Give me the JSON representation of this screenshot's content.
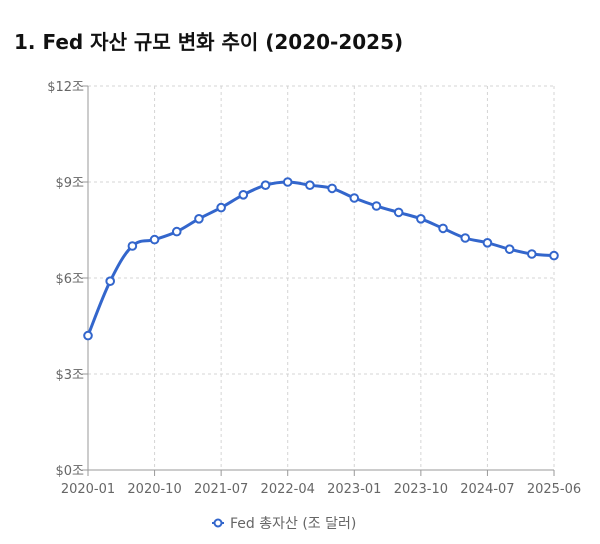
{
  "chart_data": {
    "type": "line",
    "title": "1. Fed 자산 규모 변화 추이 (2020-2025)",
    "xlabel": "",
    "ylabel": "",
    "x": [
      "2020-01",
      "2020-04",
      "2020-07",
      "2020-10",
      "2021-01",
      "2021-04",
      "2021-07",
      "2021-10",
      "2022-01",
      "2022-04",
      "2022-07",
      "2022-10",
      "2023-01",
      "2023-04",
      "2023-07",
      "2023-10",
      "2024-01",
      "2024-04",
      "2024-07",
      "2024-10",
      "2025-01",
      "2025-06"
    ],
    "x_tick_labels": [
      "2020-01",
      "2020-10",
      "2021-07",
      "2022-04",
      "2023-01",
      "2023-10",
      "2024-07",
      "2025-06"
    ],
    "y_tick_labels": [
      "$0조",
      "$3조",
      "$6조",
      "$9조",
      "$12조"
    ],
    "y_ticks": [
      0,
      3,
      6,
      9,
      12
    ],
    "ylim": [
      0,
      12
    ],
    "grid": true,
    "legend_position": "bottom",
    "series": [
      {
        "name": "Fed 총자산 (조 달러)",
        "color": "#3366cc",
        "values": [
          4.2,
          5.9,
          7.0,
          7.2,
          7.45,
          7.85,
          8.2,
          8.6,
          8.9,
          9.0,
          8.9,
          8.8,
          8.5,
          8.25,
          8.05,
          7.85,
          7.55,
          7.25,
          7.1,
          6.9,
          6.75,
          6.7
        ]
      }
    ]
  }
}
